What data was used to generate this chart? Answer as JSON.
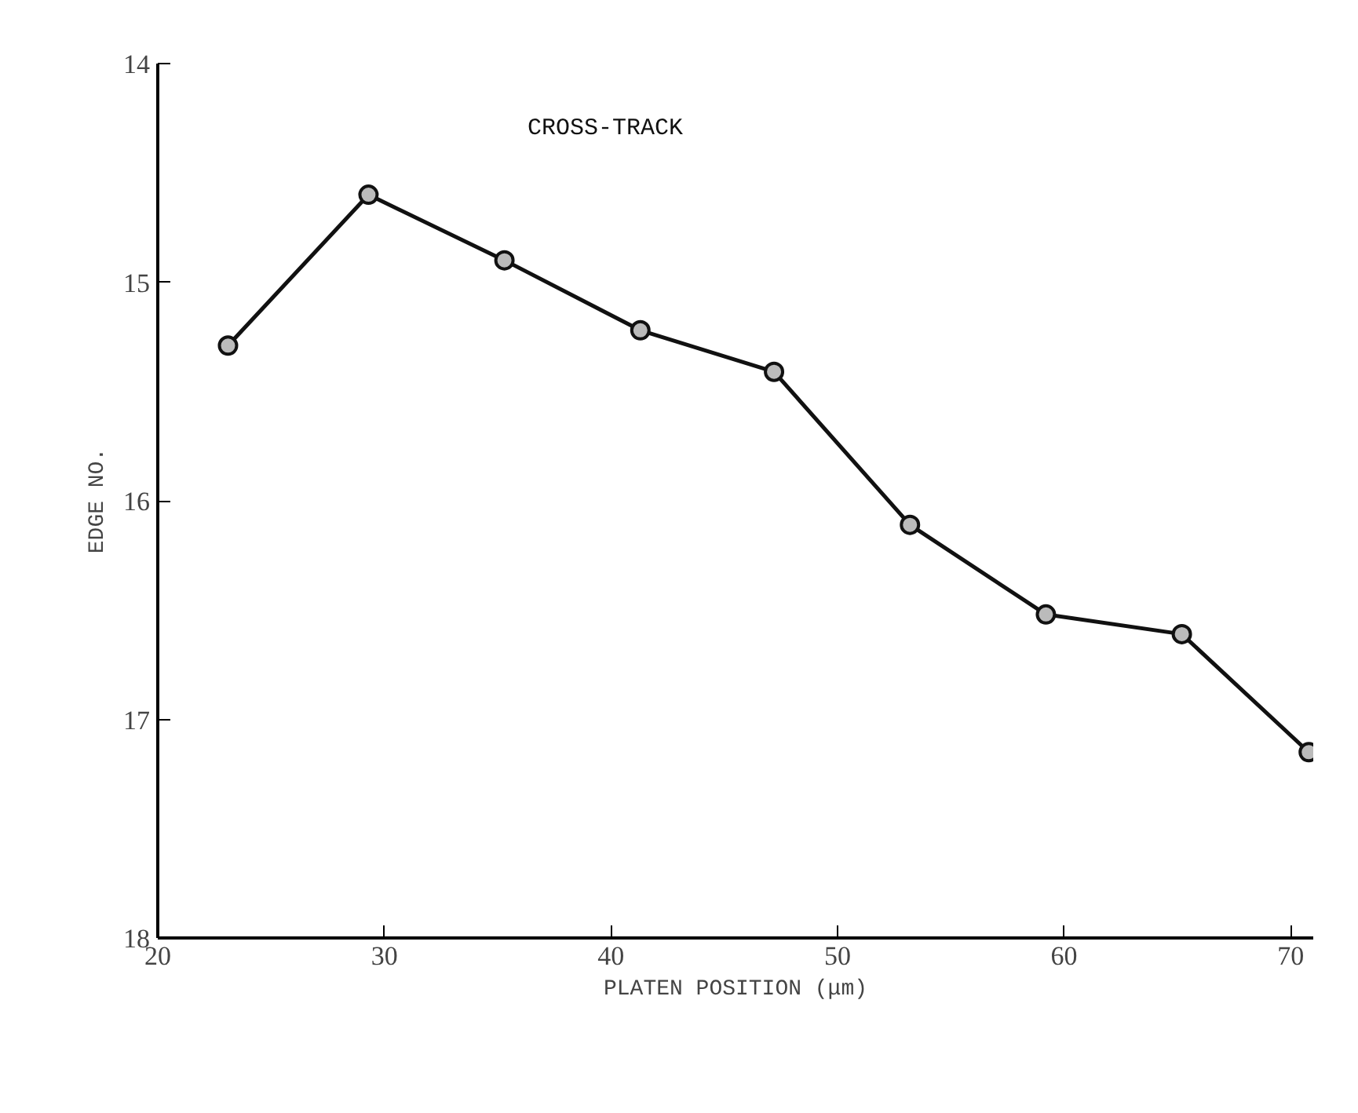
{
  "chart_data": {
    "type": "line",
    "xlabel": "PLATEN POSITION (μm)",
    "ylabel": "EDGE NO.",
    "x": [
      23.1,
      29.3,
      35.3,
      41.3,
      47.2,
      53.2,
      59.2,
      65.2,
      70.8
    ],
    "series": [
      {
        "name": "CROSS-TRACK",
        "color": "#111111",
        "values": [
          15.29,
          14.6,
          14.9,
          15.22,
          15.41,
          16.11,
          16.52,
          16.61,
          17.15
        ]
      }
    ],
    "xlim": [
      20,
      71
    ],
    "ylim": [
      18,
      14
    ],
    "xticks": [
      20,
      30,
      40,
      50,
      60,
      70
    ],
    "yticks": [
      14,
      15,
      16,
      17,
      18
    ],
    "grid": false,
    "marker": "circle",
    "line_style": "solid"
  }
}
